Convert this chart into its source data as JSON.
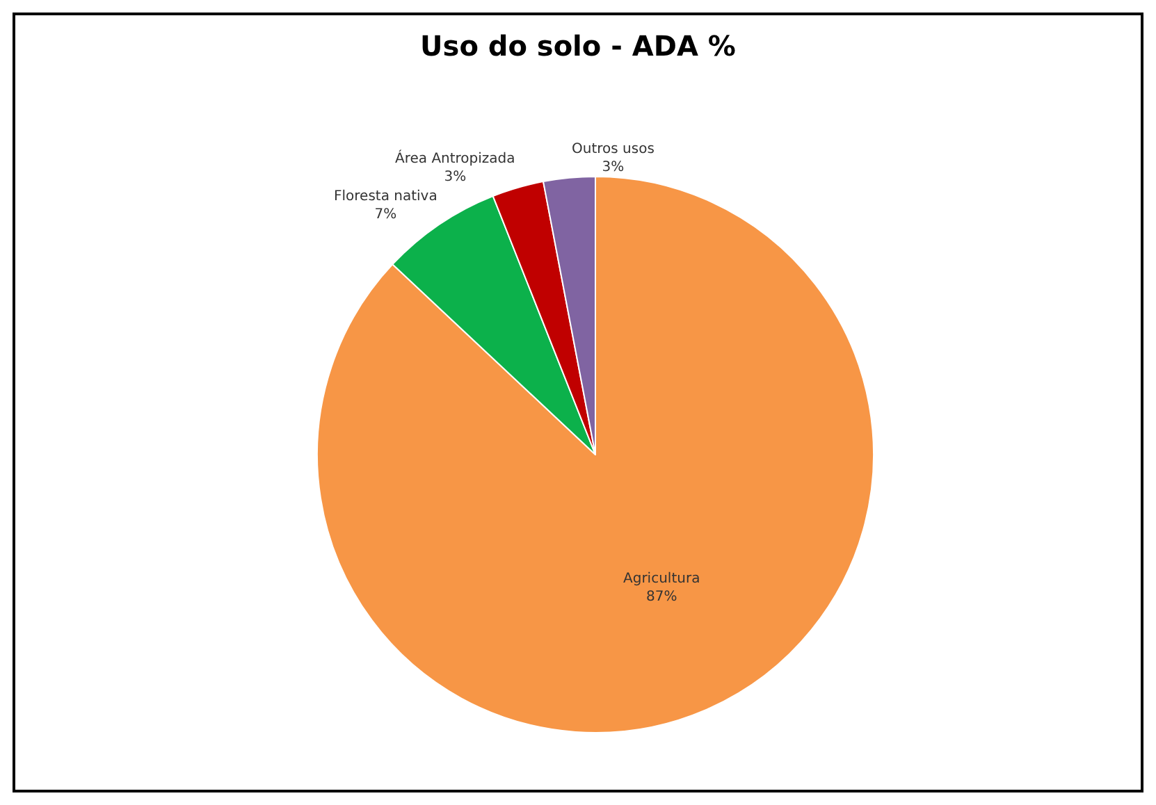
{
  "chart_data": {
    "type": "pie",
    "title": "Uso do solo - ADA %",
    "categories": [
      "Agricultura",
      "Floresta nativa",
      "Área Antropizada",
      "Outros usos"
    ],
    "values": [
      87,
      7,
      3,
      3
    ],
    "value_labels": [
      "87%",
      "7%",
      "3%",
      "3%"
    ],
    "colors": [
      "#f79646",
      "#0cb14b",
      "#c00000",
      "#8064a2"
    ],
    "legend": false
  }
}
